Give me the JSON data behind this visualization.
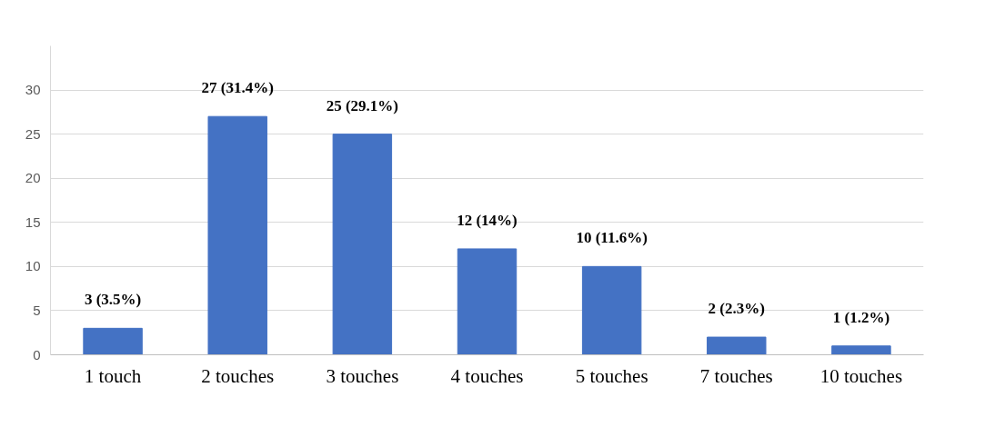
{
  "chart_data": {
    "type": "bar",
    "categories": [
      "1 touch",
      "2 touches",
      "3 touches",
      "4 touches",
      "5 touches",
      "7 touches",
      "10 touches"
    ],
    "values": [
      3,
      27,
      25,
      12,
      10,
      2,
      1
    ],
    "value_labels": [
      "3 (3.5%)",
      "27 (31.4%)",
      "25 (29.1%)",
      "12 (14%)",
      "10 (11.6%)",
      "2 (2.3%)",
      "1 (1.2%)"
    ],
    "color": "#4472c4",
    "ylim": [
      0,
      35
    ],
    "yticks": [
      0,
      5,
      10,
      15,
      20,
      25,
      30
    ],
    "grid": "y"
  }
}
